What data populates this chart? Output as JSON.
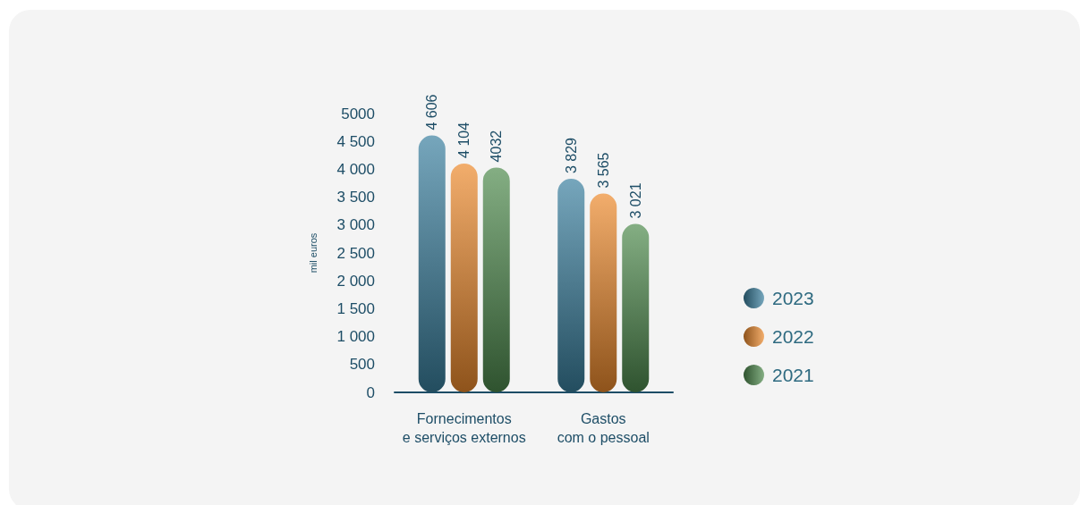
{
  "chart_data": {
    "type": "bar",
    "ylabel": "mil euros",
    "categories": [
      "Fornecimentos\ne serviços externos",
      "Gastos\ncom o pessoal"
    ],
    "series": [
      {
        "name": "2023",
        "color": "#3b809f",
        "values": [
          4606,
          3829
        ],
        "value_labels": [
          "4 606",
          "3 829"
        ]
      },
      {
        "name": "2022",
        "color": "#ec8a2d",
        "values": [
          4104,
          3565
        ],
        "value_labels": [
          "4 104",
          "3 565"
        ]
      },
      {
        "name": "2021",
        "color": "#4f8b4e",
        "values": [
          4032,
          3021
        ],
        "value_labels": [
          "4032",
          "3 021"
        ]
      }
    ],
    "ylim": [
      0,
      5000
    ],
    "yticks": [
      {
        "value": 0,
        "label": "0"
      },
      500,
      {
        "value": 1000,
        "label": "1 000"
      },
      {
        "value": 1500,
        "label": "1 500"
      },
      {
        "value": 2000,
        "label": "2 000"
      },
      {
        "value": 2500,
        "label": "2 500"
      },
      {
        "value": 3000,
        "label": "3 000"
      },
      {
        "value": 3500,
        "label": "3 500"
      },
      {
        "value": 4000,
        "label": "4 000"
      },
      {
        "value": 4500,
        "label": "4 500"
      },
      5000
    ],
    "grid": false,
    "legend": "right"
  }
}
